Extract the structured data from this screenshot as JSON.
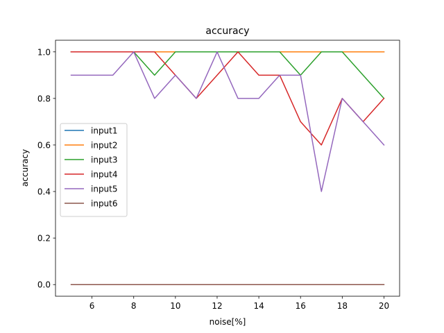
{
  "chart_data": {
    "type": "line",
    "title": "accuracy",
    "xlabel": "noise[%]",
    "ylabel": "accuracy",
    "xlim": [
      4.25,
      20.75
    ],
    "ylim": [
      -0.05,
      1.05
    ],
    "xticks": [
      6,
      8,
      10,
      12,
      14,
      16,
      18,
      20
    ],
    "yticks": [
      0.0,
      0.2,
      0.4,
      0.6,
      0.8,
      1.0
    ],
    "xtick_labels": [
      "6",
      "8",
      "10",
      "12",
      "14",
      "16",
      "18",
      "20"
    ],
    "ytick_labels": [
      "0.0",
      "0.2",
      "0.4",
      "0.6",
      "0.8",
      "1.0"
    ],
    "grid": false,
    "legend_position": "center-left",
    "x": [
      5,
      6,
      7,
      8,
      9,
      10,
      11,
      12,
      13,
      14,
      15,
      16,
      17,
      18,
      19,
      20
    ],
    "series": [
      {
        "name": "input1",
        "color": "#1f77b4",
        "values": [
          1,
          1,
          1,
          1,
          1,
          1,
          1,
          1,
          1,
          1,
          1,
          1,
          1,
          1,
          1,
          1
        ]
      },
      {
        "name": "input2",
        "color": "#ff7f0e",
        "values": [
          1,
          1,
          1,
          1,
          1,
          1,
          1,
          1,
          1,
          1,
          1,
          1,
          1,
          1,
          1,
          1
        ]
      },
      {
        "name": "input3",
        "color": "#2ca02c",
        "values": [
          1,
          1,
          1,
          1,
          0.9,
          1,
          1,
          1,
          1,
          1,
          1,
          0.9,
          1,
          1,
          0.9,
          0.8
        ]
      },
      {
        "name": "input4",
        "color": "#d62728",
        "values": [
          1,
          1,
          1,
          1,
          1,
          0.9,
          0.8,
          0.9,
          1,
          0.9,
          0.9,
          0.7,
          0.6,
          0.8,
          0.7,
          0.8
        ]
      },
      {
        "name": "input5",
        "color": "#9467bd",
        "values": [
          0.9,
          0.9,
          0.9,
          1,
          0.8,
          0.9,
          0.8,
          1,
          0.8,
          0.8,
          0.9,
          0.9,
          0.4,
          0.8,
          0.7,
          0.6
        ]
      },
      {
        "name": "input6",
        "color": "#8c564b",
        "values": [
          0,
          0,
          0,
          0,
          0,
          0,
          0,
          0,
          0,
          0,
          0,
          0,
          0,
          0,
          0,
          0
        ]
      }
    ]
  }
}
